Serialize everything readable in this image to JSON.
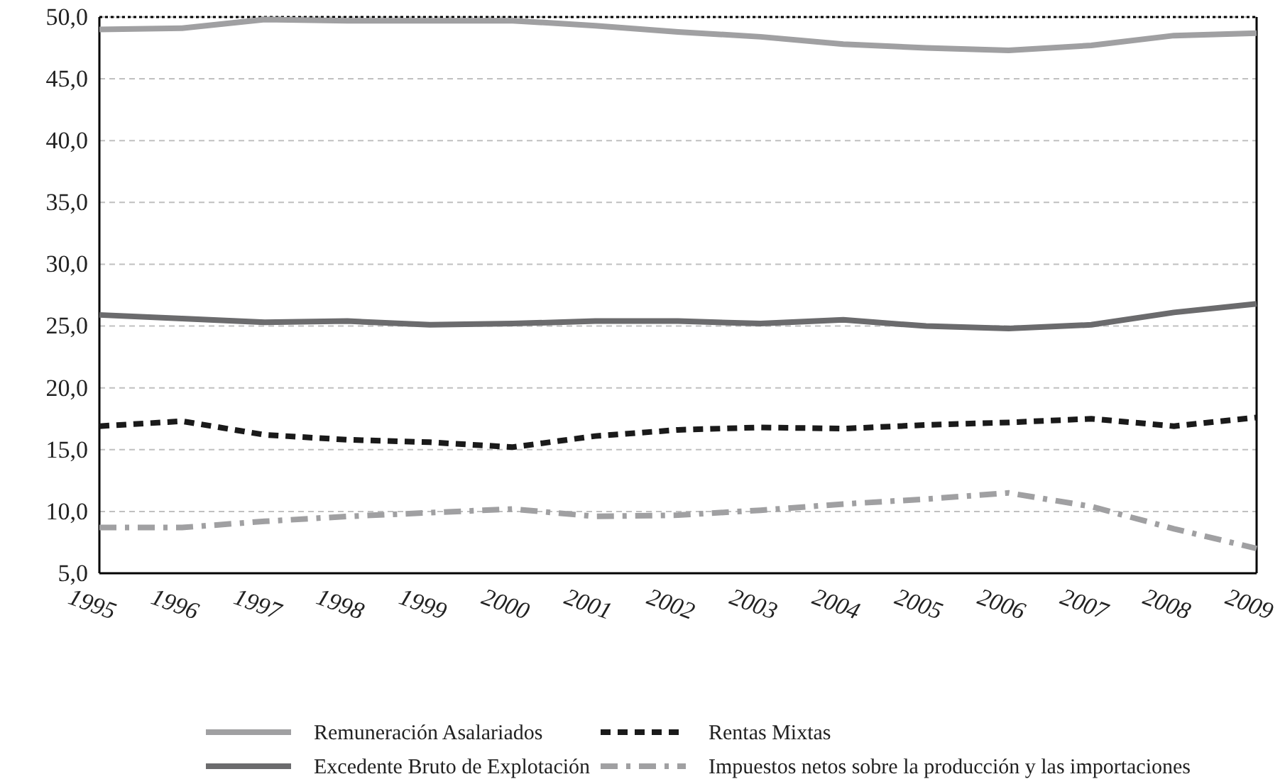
{
  "chart_data": {
    "type": "line",
    "categories": [
      "1995",
      "1996",
      "1997",
      "1998",
      "1999",
      "2000",
      "2001",
      "2002",
      "2003",
      "2004",
      "2005",
      "2006",
      "2007",
      "2008",
      "2009"
    ],
    "ylim": [
      5,
      50
    ],
    "yticks": [
      {
        "value": 5,
        "label": "5,0"
      },
      {
        "value": 10,
        "label": "10,0"
      },
      {
        "value": 15,
        "label": "15,0"
      },
      {
        "value": 20,
        "label": "20,0"
      },
      {
        "value": 25,
        "label": "25,0"
      },
      {
        "value": 30,
        "label": "30,0"
      },
      {
        "value": 35,
        "label": "35,0"
      },
      {
        "value": 40,
        "label": "40,0"
      },
      {
        "value": 45,
        "label": "45,0"
      },
      {
        "value": 50,
        "label": "50,0"
      }
    ],
    "grid": "y",
    "legend": "bottom",
    "marker": "none",
    "series": [
      {
        "name": "Remuneración Asalariados",
        "color": "#a0a0a2",
        "line_style": "solid",
        "values": [
          49.0,
          49.1,
          49.8,
          49.7,
          49.7,
          49.7,
          49.3,
          48.8,
          48.4,
          47.8,
          47.5,
          47.3,
          47.7,
          48.5,
          48.7
        ]
      },
      {
        "name": "Rentas Mixtas",
        "color": "#1a1a1a",
        "line_style": "dashed",
        "values": [
          16.9,
          17.3,
          16.2,
          15.8,
          15.6,
          15.2,
          16.1,
          16.6,
          16.8,
          16.7,
          17.0,
          17.2,
          17.5,
          16.9,
          17.6
        ]
      },
      {
        "name": "Excedente Bruto de Explotación",
        "color": "#6b6b6d",
        "line_style": "solid",
        "values": [
          25.9,
          25.6,
          25.3,
          25.4,
          25.1,
          25.2,
          25.4,
          25.4,
          25.2,
          25.5,
          25.0,
          24.8,
          25.1,
          26.1,
          26.8
        ]
      },
      {
        "name": "Impuestos netos sobre la producción y las importaciones",
        "color": "#a0a0a2",
        "line_style": "dashdot",
        "values": [
          8.7,
          8.7,
          9.2,
          9.6,
          9.9,
          10.2,
          9.6,
          9.7,
          10.1,
          10.6,
          11.0,
          11.5,
          10.4,
          8.6,
          7.0
        ]
      }
    ]
  }
}
